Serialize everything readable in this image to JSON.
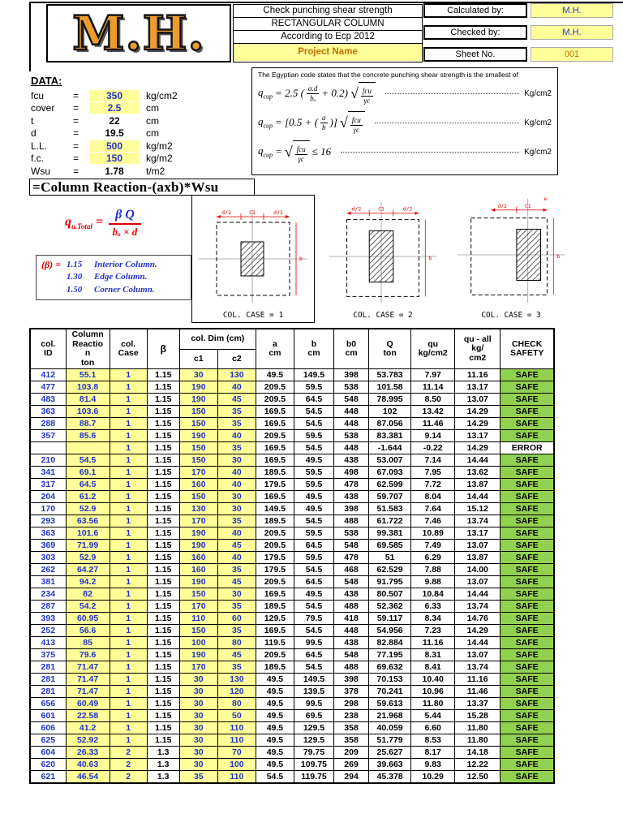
{
  "header": {
    "logo": "M.H.",
    "title_lines": [
      "Check punching  shear strength",
      "RECTANGULAR COLUMN",
      "According to Ecp 2012"
    ],
    "project_name": "Project Name",
    "fields": [
      {
        "label": "Calculated by:",
        "value": "M.H."
      },
      {
        "label": "Checked by:",
        "value": "M.H."
      },
      {
        "label": "Sheet No.",
        "value": "001"
      }
    ]
  },
  "data_section": {
    "heading": "DATA:",
    "equals": "=",
    "rows": [
      {
        "name": "fcu",
        "value": "350",
        "unit": "kg/cm2",
        "input": true
      },
      {
        "name": "cover",
        "value": "2.5",
        "unit": "cm",
        "input": true
      },
      {
        "name": "t",
        "value": "22",
        "unit": "cm",
        "input": false
      },
      {
        "name": "d",
        "value": "19.5",
        "unit": "cm",
        "input": false
      },
      {
        "name": "L.L.",
        "value": "500",
        "unit": "kg/m2",
        "input": true
      },
      {
        "name": "f.c.",
        "value": "150",
        "unit": "kg/m2",
        "input": true
      },
      {
        "name": "Wsu",
        "value": "1.78",
        "unit": "t/m2",
        "input": false
      }
    ]
  },
  "code_box": {
    "intro": "The Egyptian code states that the concrete punching shear strength is the smallest of",
    "formulas": [
      {
        "base": "q",
        "sub": "cup",
        "pre": "= 2.5 (",
        "num": "α.d",
        "den": "bₒ",
        "post": "+ 0.2)",
        "rad_num": "fcu",
        "rad_den": "γc",
        "tail": "",
        "unit": "Kg/cm2"
      },
      {
        "base": "q",
        "sub": "cup",
        "pre": "= [0.5 + (",
        "num": "a",
        "den": "b",
        "post": ")]",
        "rad_num": "fcu",
        "rad_den": "γc",
        "tail": "",
        "unit": "Kg/cm2"
      },
      {
        "base": "q",
        "sub": "cup",
        "pre": "=",
        "num": "",
        "den": "",
        "post": "",
        "rad_num": "fcu",
        "rad_den": "γc",
        "tail": "≤ 16",
        "unit": "Kg/cm2"
      }
    ]
  },
  "reaction_equation": "=Column Reaction-(axb)*Wsu",
  "main_formula": {
    "lhs_base": "q",
    "lhs_sub": "u.Total",
    "eq": "=",
    "num": "β Q",
    "den": "bₒ × d"
  },
  "beta_legend": {
    "label": "(β) =",
    "items": [
      {
        "value": "1.15",
        "text": "Interior Column."
      },
      {
        "value": "1.30",
        "text": "Edge Column."
      },
      {
        "value": "1.50",
        "text": "Corner Column."
      }
    ]
  },
  "diagrams": {
    "d1": {
      "caption": "COL. CASE = 1",
      "top_left": "d/2",
      "top_mid": "C1",
      "top_right": "d/2",
      "side": "b"
    },
    "d2": {
      "caption": "COL. CASE  = 2",
      "top_left": "d/2",
      "top_mid": "C1",
      "top_right": "d/2",
      "side": "b"
    },
    "d3": {
      "caption": "COL. CASE  = 3",
      "top_left": "d/2",
      "top_mid": "C1",
      "top_right": "e",
      "side": "b"
    }
  },
  "table": {
    "headers": {
      "col_id": "col.\nID",
      "reaction": "Column\nReactio\nn\nton",
      "case": "col.\nCase",
      "beta": "β",
      "dim": "col. Dim (cm)",
      "c1": "c1",
      "c2": "c2",
      "a": "a\ncm",
      "b": "b\ncm",
      "b0": "b0\ncm",
      "q": "Q\nton",
      "qu": "qu\nkg/cm2",
      "qu_all": "qu - all\nkg/\ncm2",
      "check": "CHECK\nSAFETY"
    },
    "rows": [
      [
        "412",
        "55.1",
        "1",
        "1.15",
        "30",
        "130",
        "49.5",
        "149.5",
        "398",
        "53.783",
        "7.97",
        "11.16",
        "SAFE"
      ],
      [
        "477",
        "103.8",
        "1",
        "1.15",
        "190",
        "40",
        "209.5",
        "59.5",
        "538",
        "101.58",
        "11.14",
        "13.17",
        "SAFE"
      ],
      [
        "483",
        "81.4",
        "1",
        "1.15",
        "190",
        "45",
        "209.5",
        "64.5",
        "548",
        "78.995",
        "8.50",
        "13.07",
        "SAFE"
      ],
      [
        "363",
        "103.6",
        "1",
        "1.15",
        "150",
        "35",
        "169.5",
        "54.5",
        "448",
        "102",
        "13.42",
        "14.29",
        "SAFE"
      ],
      [
        "288",
        "88.7",
        "1",
        "1.15",
        "150",
        "35",
        "169.5",
        "54.5",
        "448",
        "87.056",
        "11.46",
        "14.29",
        "SAFE"
      ],
      [
        "357",
        "85.6",
        "1",
        "1.15",
        "190",
        "40",
        "209.5",
        "59.5",
        "538",
        "83.381",
        "9.14",
        "13.17",
        "SAFE"
      ],
      [
        "",
        "",
        "1",
        "1.15",
        "150",
        "35",
        "169.5",
        "54.5",
        "448",
        "-1.644",
        "-0.22",
        "14.29",
        "ERROR"
      ],
      [
        "210",
        "54.5",
        "1",
        "1.15",
        "150",
        "30",
        "169.5",
        "49.5",
        "438",
        "53.007",
        "7.14",
        "14.44",
        "SAFE"
      ],
      [
        "341",
        "69.1",
        "1",
        "1.15",
        "170",
        "40",
        "189.5",
        "59.5",
        "498",
        "67.093",
        "7.95",
        "13.62",
        "SAFE"
      ],
      [
        "317",
        "64.5",
        "1",
        "1.15",
        "160",
        "40",
        "179.5",
        "59.5",
        "478",
        "62.599",
        "7.72",
        "13.87",
        "SAFE"
      ],
      [
        "204",
        "61.2",
        "1",
        "1.15",
        "150",
        "30",
        "169.5",
        "49.5",
        "438",
        "59.707",
        "8.04",
        "14.44",
        "SAFE"
      ],
      [
        "170",
        "52.9",
        "1",
        "1.15",
        "130",
        "30",
        "149.5",
        "49.5",
        "398",
        "51.583",
        "7.64",
        "15.12",
        "SAFE"
      ],
      [
        "293",
        "63.56",
        "1",
        "1.15",
        "170",
        "35",
        "189.5",
        "54.5",
        "488",
        "61.722",
        "7.46",
        "13.74",
        "SAFE"
      ],
      [
        "363",
        "101.6",
        "1",
        "1.15",
        "190",
        "40",
        "209.5",
        "59.5",
        "538",
        "99.381",
        "10.89",
        "13.17",
        "SAFE"
      ],
      [
        "369",
        "71.99",
        "1",
        "1.15",
        "190",
        "45",
        "209.5",
        "64.5",
        "548",
        "69.585",
        "7.49",
        "13.07",
        "SAFE"
      ],
      [
        "303",
        "52.9",
        "1",
        "1.15",
        "160",
        "40",
        "179.5",
        "59.5",
        "478",
        "51",
        "6.29",
        "13.87",
        "SAFE"
      ],
      [
        "262",
        "64.27",
        "1",
        "1.15",
        "160",
        "35",
        "179.5",
        "54.5",
        "468",
        "62.529",
        "7.88",
        "14.00",
        "SAFE"
      ],
      [
        "381",
        "94.2",
        "1",
        "1.15",
        "190",
        "45",
        "209.5",
        "64.5",
        "548",
        "91.795",
        "9.88",
        "13.07",
        "SAFE"
      ],
      [
        "234",
        "82",
        "1",
        "1.15",
        "150",
        "30",
        "169.5",
        "49.5",
        "438",
        "80.507",
        "10.84",
        "14.44",
        "SAFE"
      ],
      [
        "287",
        "54.2",
        "1",
        "1.15",
        "170",
        "35",
        "189.5",
        "54.5",
        "488",
        "52.362",
        "6.33",
        "13.74",
        "SAFE"
      ],
      [
        "393",
        "60.95",
        "1",
        "1.15",
        "110",
        "60",
        "129.5",
        "79.5",
        "418",
        "59.117",
        "8.34",
        "14.76",
        "SAFE"
      ],
      [
        "252",
        "56.6",
        "1",
        "1.15",
        "150",
        "35",
        "169.5",
        "54.5",
        "448",
        "54.956",
        "7.23",
        "14.29",
        "SAFE"
      ],
      [
        "413",
        "85",
        "1",
        "1.15",
        "100",
        "80",
        "119.5",
        "99.5",
        "438",
        "82.884",
        "11.16",
        "14.44",
        "SAFE"
      ],
      [
        "375",
        "79.6",
        "1",
        "1.15",
        "190",
        "45",
        "209.5",
        "64.5",
        "548",
        "77.195",
        "8.31",
        "13.07",
        "SAFE"
      ],
      [
        "281",
        "71.47",
        "1",
        "1.15",
        "170",
        "35",
        "189.5",
        "54.5",
        "488",
        "69.632",
        "8.41",
        "13.74",
        "SAFE"
      ],
      [
        "281",
        "71.47",
        "1",
        "1.15",
        "30",
        "130",
        "49.5",
        "149.5",
        "398",
        "70.153",
        "10.40",
        "11.16",
        "SAFE"
      ],
      [
        "281",
        "71.47",
        "1",
        "1.15",
        "30",
        "120",
        "49.5",
        "139.5",
        "378",
        "70.241",
        "10.96",
        "11.46",
        "SAFE"
      ],
      [
        "656",
        "60.49",
        "1",
        "1.15",
        "30",
        "80",
        "49.5",
        "99.5",
        "298",
        "59.613",
        "11.80",
        "13.37",
        "SAFE"
      ],
      [
        "601",
        "22.58",
        "1",
        "1.15",
        "30",
        "50",
        "49.5",
        "69.5",
        "238",
        "21.968",
        "5.44",
        "15.28",
        "SAFE"
      ],
      [
        "606",
        "41.2",
        "1",
        "1.15",
        "30",
        "110",
        "49.5",
        "129.5",
        "358",
        "40.059",
        "6.60",
        "11.80",
        "SAFE"
      ],
      [
        "625",
        "52.92",
        "1",
        "1.15",
        "30",
        "110",
        "49.5",
        "129.5",
        "358",
        "51.779",
        "8.53",
        "11.80",
        "SAFE"
      ],
      [
        "604",
        "26.33",
        "2",
        "1.3",
        "30",
        "70",
        "49.5",
        "79.75",
        "209",
        "25.627",
        "8.17",
        "14.18",
        "SAFE"
      ],
      [
        "620",
        "40.63",
        "2",
        "1.3",
        "30",
        "100",
        "49.5",
        "109.75",
        "269",
        "39.663",
        "9.83",
        "12.22",
        "SAFE"
      ],
      [
        "621",
        "46.54",
        "2",
        "1.3",
        "35",
        "110",
        "54.5",
        "119.75",
        "294",
        "45.378",
        "10.29",
        "12.50",
        "SAFE"
      ]
    ]
  }
}
